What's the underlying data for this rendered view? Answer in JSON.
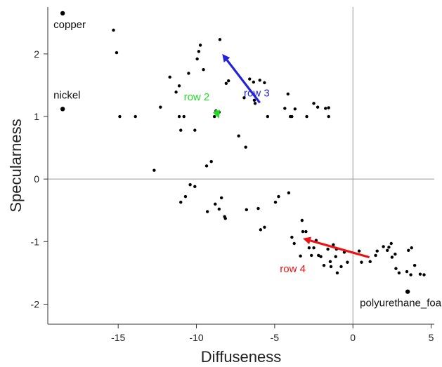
{
  "chart_data": {
    "type": "scatter",
    "xlabel": "Diffuseness",
    "ylabel": "Specularness",
    "xlim": [
      -19.5,
      5.2
    ],
    "ylim": [
      -2.32,
      2.75
    ],
    "xticks": [
      -15,
      -10,
      -5,
      0,
      5
    ],
    "yticks": [
      -2,
      -1,
      0,
      1,
      2
    ],
    "reference_lines": {
      "x": 0,
      "y": 0,
      "color": "#999999"
    },
    "grid": false,
    "points": [
      [
        -15.3,
        2.38
      ],
      [
        -15.1,
        2.02
      ],
      [
        -14.9,
        1.0
      ],
      [
        -13.9,
        1.0
      ],
      [
        -12.7,
        0.14
      ],
      [
        -12.3,
        1.15
      ],
      [
        -11.7,
        1.63
      ],
      [
        -11.3,
        1.39
      ],
      [
        -11.1,
        1.49
      ],
      [
        -11.1,
        1.0
      ],
      [
        -11.0,
        0.78
      ],
      [
        -10.8,
        1.0
      ],
      [
        -10.5,
        1.69
      ],
      [
        -10.1,
        0.78
      ],
      [
        -9.95,
        1.92
      ],
      [
        -9.85,
        2.04
      ],
      [
        -9.75,
        2.14
      ],
      [
        -9.55,
        1.75
      ],
      [
        -9.35,
        0.21
      ],
      [
        -9.05,
        0.28
      ],
      [
        -8.85,
        1.0
      ],
      [
        -8.75,
        1.09
      ],
      [
        -8.55,
        1.07
      ],
      [
        -8.5,
        2.23
      ],
      [
        -8.1,
        1.53
      ],
      [
        -7.95,
        1.57
      ],
      [
        -7.3,
        0.69
      ],
      [
        -6.95,
        1.3
      ],
      [
        -6.85,
        0.51
      ],
      [
        -6.6,
        1.6
      ],
      [
        -6.35,
        1.55
      ],
      [
        -6.3,
        1.26
      ],
      [
        -6.25,
        1.21
      ],
      [
        -5.95,
        1.58
      ],
      [
        -5.65,
        1.54
      ],
      [
        -5.45,
        1.0
      ],
      [
        -4.35,
        1.13
      ],
      [
        -4.15,
        1.36
      ],
      [
        -4.0,
        1.0
      ],
      [
        -3.9,
        1.0
      ],
      [
        -3.7,
        1.12
      ],
      [
        -2.95,
        1.0
      ],
      [
        -2.5,
        1.21
      ],
      [
        -2.25,
        1.15
      ],
      [
        -1.75,
        1.13
      ],
      [
        -1.55,
        1.0
      ],
      [
        -1.55,
        1.14
      ],
      [
        -11.0,
        -0.37
      ],
      [
        -10.7,
        -0.28
      ],
      [
        -10.4,
        -0.09
      ],
      [
        -10.1,
        -0.12
      ],
      [
        -9.3,
        -0.52
      ],
      [
        -8.8,
        -0.4
      ],
      [
        -8.55,
        -0.48
      ],
      [
        -8.4,
        -0.3
      ],
      [
        -8.2,
        -0.6
      ],
      [
        -8.15,
        -0.63
      ],
      [
        -6.8,
        -0.49
      ],
      [
        -6.05,
        -0.47
      ],
      [
        -5.9,
        -0.81
      ],
      [
        -5.65,
        -0.77
      ],
      [
        -4.95,
        -0.37
      ],
      [
        -4.75,
        -0.28
      ],
      [
        -4.1,
        -0.22
      ],
      [
        -3.9,
        -0.93
      ],
      [
        -3.75,
        -1.03
      ],
      [
        -3.35,
        -1.23
      ],
      [
        -3.25,
        -0.66
      ],
      [
        -3.2,
        -0.84
      ],
      [
        -3.0,
        -0.84
      ],
      [
        -2.8,
        -1.1
      ],
      [
        -2.65,
        -1.22
      ],
      [
        -2.5,
        -1.1
      ],
      [
        -2.35,
        -0.98
      ],
      [
        -2.2,
        -1.22
      ],
      [
        -2.05,
        -1.24
      ],
      [
        -1.85,
        -1.38
      ],
      [
        -1.6,
        -1.12
      ],
      [
        -1.45,
        -1.32
      ],
      [
        -1.4,
        -1.4
      ],
      [
        -1.25,
        -1.05
      ],
      [
        -1.1,
        -1.24
      ],
      [
        -1.05,
        -1.12
      ],
      [
        -1.0,
        -1.5
      ],
      [
        -0.75,
        -1.4
      ],
      [
        -0.55,
        -1.17
      ],
      [
        -0.35,
        -1.33
      ],
      [
        0.4,
        -1.15
      ],
      [
        0.55,
        -1.33
      ],
      [
        1.1,
        -1.32
      ],
      [
        1.45,
        -1.22
      ],
      [
        1.55,
        -1.15
      ],
      [
        1.95,
        -1.08
      ],
      [
        2.2,
        -1.14
      ],
      [
        2.3,
        -1.09
      ],
      [
        2.45,
        -1.03
      ],
      [
        2.5,
        -1.25
      ],
      [
        2.7,
        -1.2
      ],
      [
        2.75,
        -1.43
      ],
      [
        2.95,
        -1.5
      ],
      [
        3.45,
        -1.48
      ],
      [
        3.55,
        -1.14
      ],
      [
        3.7,
        -1.53
      ],
      [
        3.75,
        -1.1
      ],
      [
        3.95,
        -1.38
      ],
      [
        4.3,
        -1.52
      ],
      [
        4.55,
        -1.53
      ]
    ],
    "labeled_points": [
      {
        "label": "copper",
        "x": -18.55,
        "y": 2.65
      },
      {
        "label": "nickel",
        "x": -18.55,
        "y": 1.12
      },
      {
        "label": "polyurethane_foam",
        "x": 3.5,
        "y": -1.8
      }
    ],
    "arrows": [
      {
        "label": "row 3",
        "color": "#2222dd",
        "from": [
          -5.95,
          1.22
        ],
        "to": [
          -8.35,
          2.0
        ]
      },
      {
        "label": "row 2",
        "color": "#22dd22",
        "from": [
          -8.75,
          1.1
        ],
        "to": [
          -8.55,
          0.97
        ]
      },
      {
        "label": "row 4",
        "color": "#ee1111",
        "from": [
          1.05,
          -1.25
        ],
        "to": [
          -3.2,
          -0.95
        ]
      }
    ]
  }
}
